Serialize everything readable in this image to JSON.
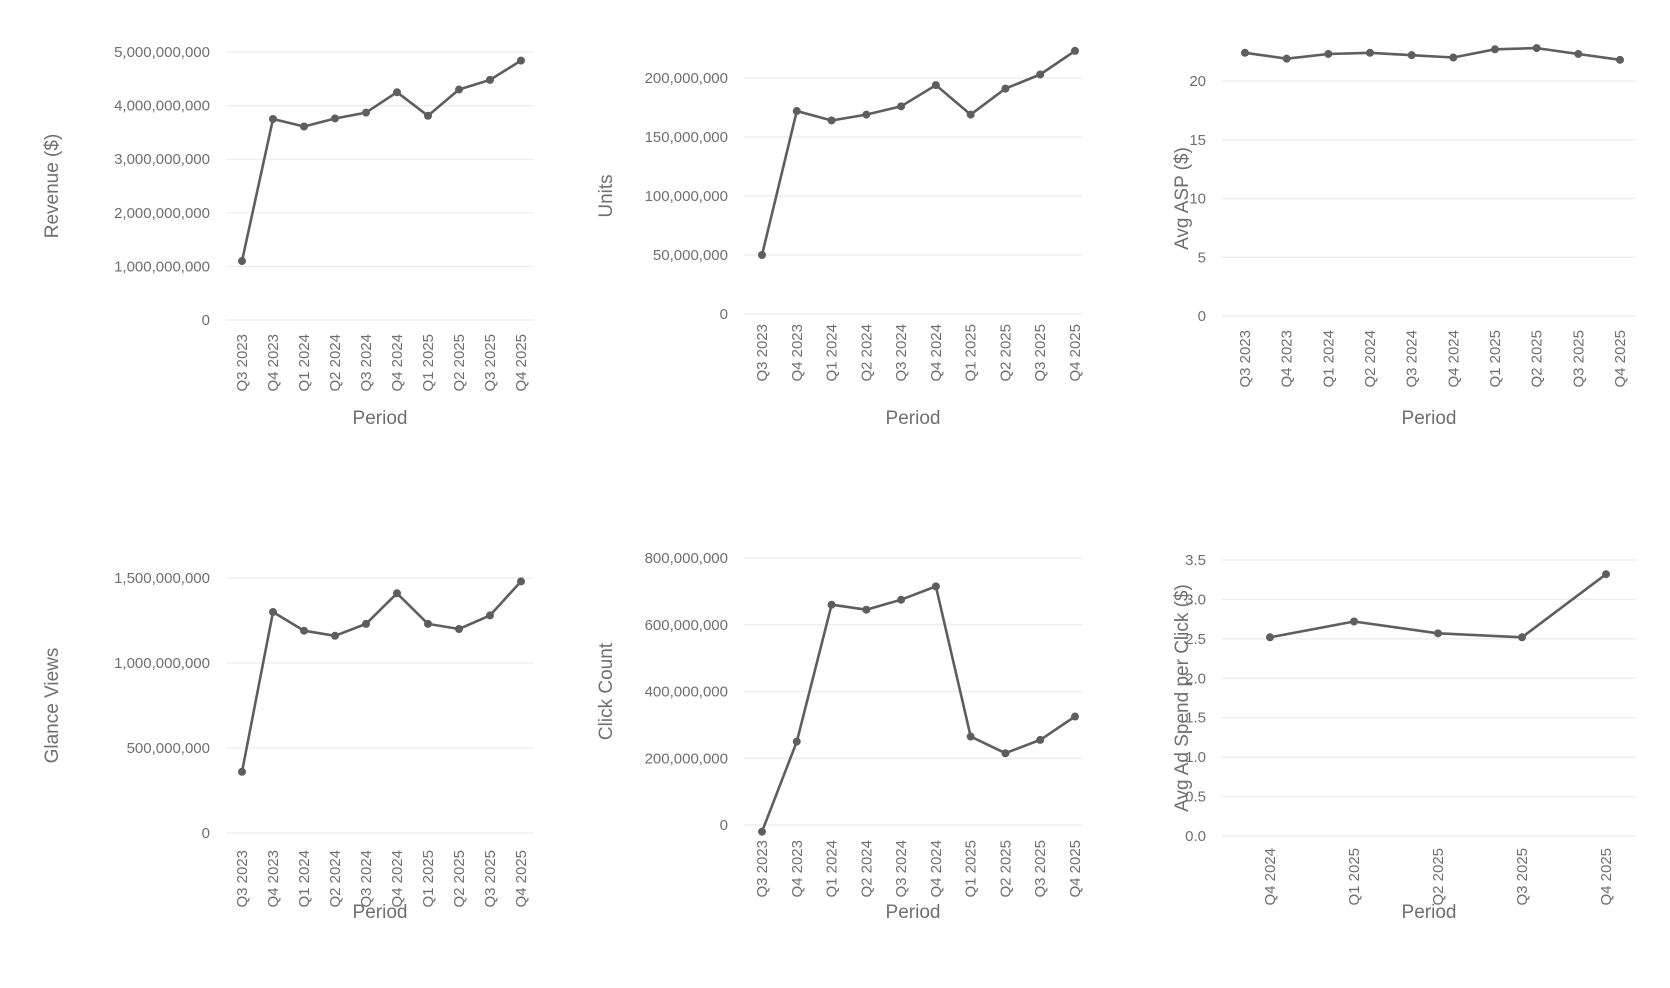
{
  "chart_data": [
    {
      "type": "line",
      "xlabel": "Period",
      "ylabel": "Revenue ($)",
      "categories": [
        "Q3 2023",
        "Q4 2023",
        "Q1 2024",
        "Q2 2024",
        "Q3 2024",
        "Q4 2024",
        "Q1 2025",
        "Q2 2025",
        "Q3 2025",
        "Q4 2025"
      ],
      "values": [
        1100000000,
        3750000000,
        3610000000,
        3760000000,
        3870000000,
        4250000000,
        3810000000,
        4300000000,
        4480000000,
        4840000000
      ],
      "ylim": [
        0,
        5000000000
      ],
      "yticks": [
        0,
        1000000000,
        2000000000,
        3000000000,
        4000000000,
        5000000000
      ],
      "ytick_labels": [
        "0",
        "1,000,000,000",
        "2,000,000,000",
        "3,000,000,000",
        "4,000,000,000",
        "5,000,000,000"
      ],
      "grid": true
    },
    {
      "type": "line",
      "xlabel": "Period",
      "ylabel": "Units",
      "categories": [
        "Q3 2023",
        "Q4 2023",
        "Q1 2024",
        "Q2 2024",
        "Q3 2024",
        "Q4 2024",
        "Q1 2025",
        "Q2 2025",
        "Q3 2025",
        "Q4 2025"
      ],
      "values": [
        50000000,
        172000000,
        164000000,
        169000000,
        176000000,
        194000000,
        169000000,
        191000000,
        203000000,
        223000000
      ],
      "ylim": [
        0,
        200000000
      ],
      "yticks": [
        0,
        50000000,
        100000000,
        150000000,
        200000000
      ],
      "ytick_labels": [
        "0",
        "50,000,000",
        "100,000,000",
        "150,000,000",
        "200,000,000"
      ],
      "grid": true
    },
    {
      "type": "line",
      "xlabel": "Period",
      "ylabel": "Avg ASP ($)",
      "categories": [
        "Q3 2023",
        "Q4 2023",
        "Q1 2024",
        "Q2 2024",
        "Q3 2024",
        "Q4 2024",
        "Q1 2025",
        "Q2 2025",
        "Q3 2025",
        "Q4 2025"
      ],
      "values": [
        22.4,
        21.9,
        22.3,
        22.4,
        22.2,
        22.0,
        22.7,
        22.8,
        22.3,
        21.8
      ],
      "ylim": [
        0,
        20
      ],
      "yticks": [
        0,
        5,
        10,
        15,
        20
      ],
      "ytick_labels": [
        "0",
        "5",
        "10",
        "15",
        "20"
      ],
      "grid": true
    },
    {
      "type": "line",
      "xlabel": "Period",
      "ylabel": "Glance Views",
      "categories": [
        "Q3 2023",
        "Q4 2023",
        "Q1 2024",
        "Q2 2024",
        "Q3 2024",
        "Q4 2024",
        "Q1 2025",
        "Q2 2025",
        "Q3 2025",
        "Q4 2025"
      ],
      "values": [
        360000000,
        1300000000,
        1190000000,
        1160000000,
        1230000000,
        1410000000,
        1230000000,
        1200000000,
        1280000000,
        1480000000
      ],
      "ylim": [
        0,
        1500000000
      ],
      "yticks": [
        0,
        500000000,
        1000000000,
        1500000000
      ],
      "ytick_labels": [
        "0",
        "500,000,000",
        "1,000,000,000",
        "1,500,000,000"
      ],
      "grid": true
    },
    {
      "type": "line",
      "xlabel": "Period",
      "ylabel": "Click Count",
      "categories": [
        "Q3 2023",
        "Q4 2023",
        "Q1 2024",
        "Q2 2024",
        "Q3 2024",
        "Q4 2024",
        "Q1 2025",
        "Q2 2025",
        "Q3 2025",
        "Q4 2025"
      ],
      "values": [
        -20000000,
        250000000,
        660000000,
        645000000,
        675000000,
        715000000,
        265000000,
        215000000,
        255000000,
        325000000
      ],
      "ylim": [
        0,
        800000000
      ],
      "yticks": [
        0,
        200000000,
        400000000,
        600000000,
        800000000
      ],
      "ytick_labels": [
        "0",
        "200,000,000",
        "400,000,000",
        "600,000,000",
        "800,000,000"
      ],
      "grid": true
    },
    {
      "type": "line",
      "xlabel": "Period",
      "ylabel": "Avg Ad Spend per Click ($)",
      "categories": [
        "Q4 2024",
        "Q1 2025",
        "Q2 2025",
        "Q3 2025",
        "Q4 2025"
      ],
      "values": [
        2.52,
        2.72,
        2.57,
        2.52,
        3.32
      ],
      "ylim": [
        0,
        3.5
      ],
      "yticks": [
        0,
        0.5,
        1.0,
        1.5,
        2.0,
        2.5,
        3.0,
        3.5
      ],
      "ytick_labels": [
        "0.0",
        "0.5",
        "1.0",
        "1.5",
        "2.0",
        "2.5",
        "3.0",
        "3.5"
      ],
      "grid": true
    }
  ]
}
